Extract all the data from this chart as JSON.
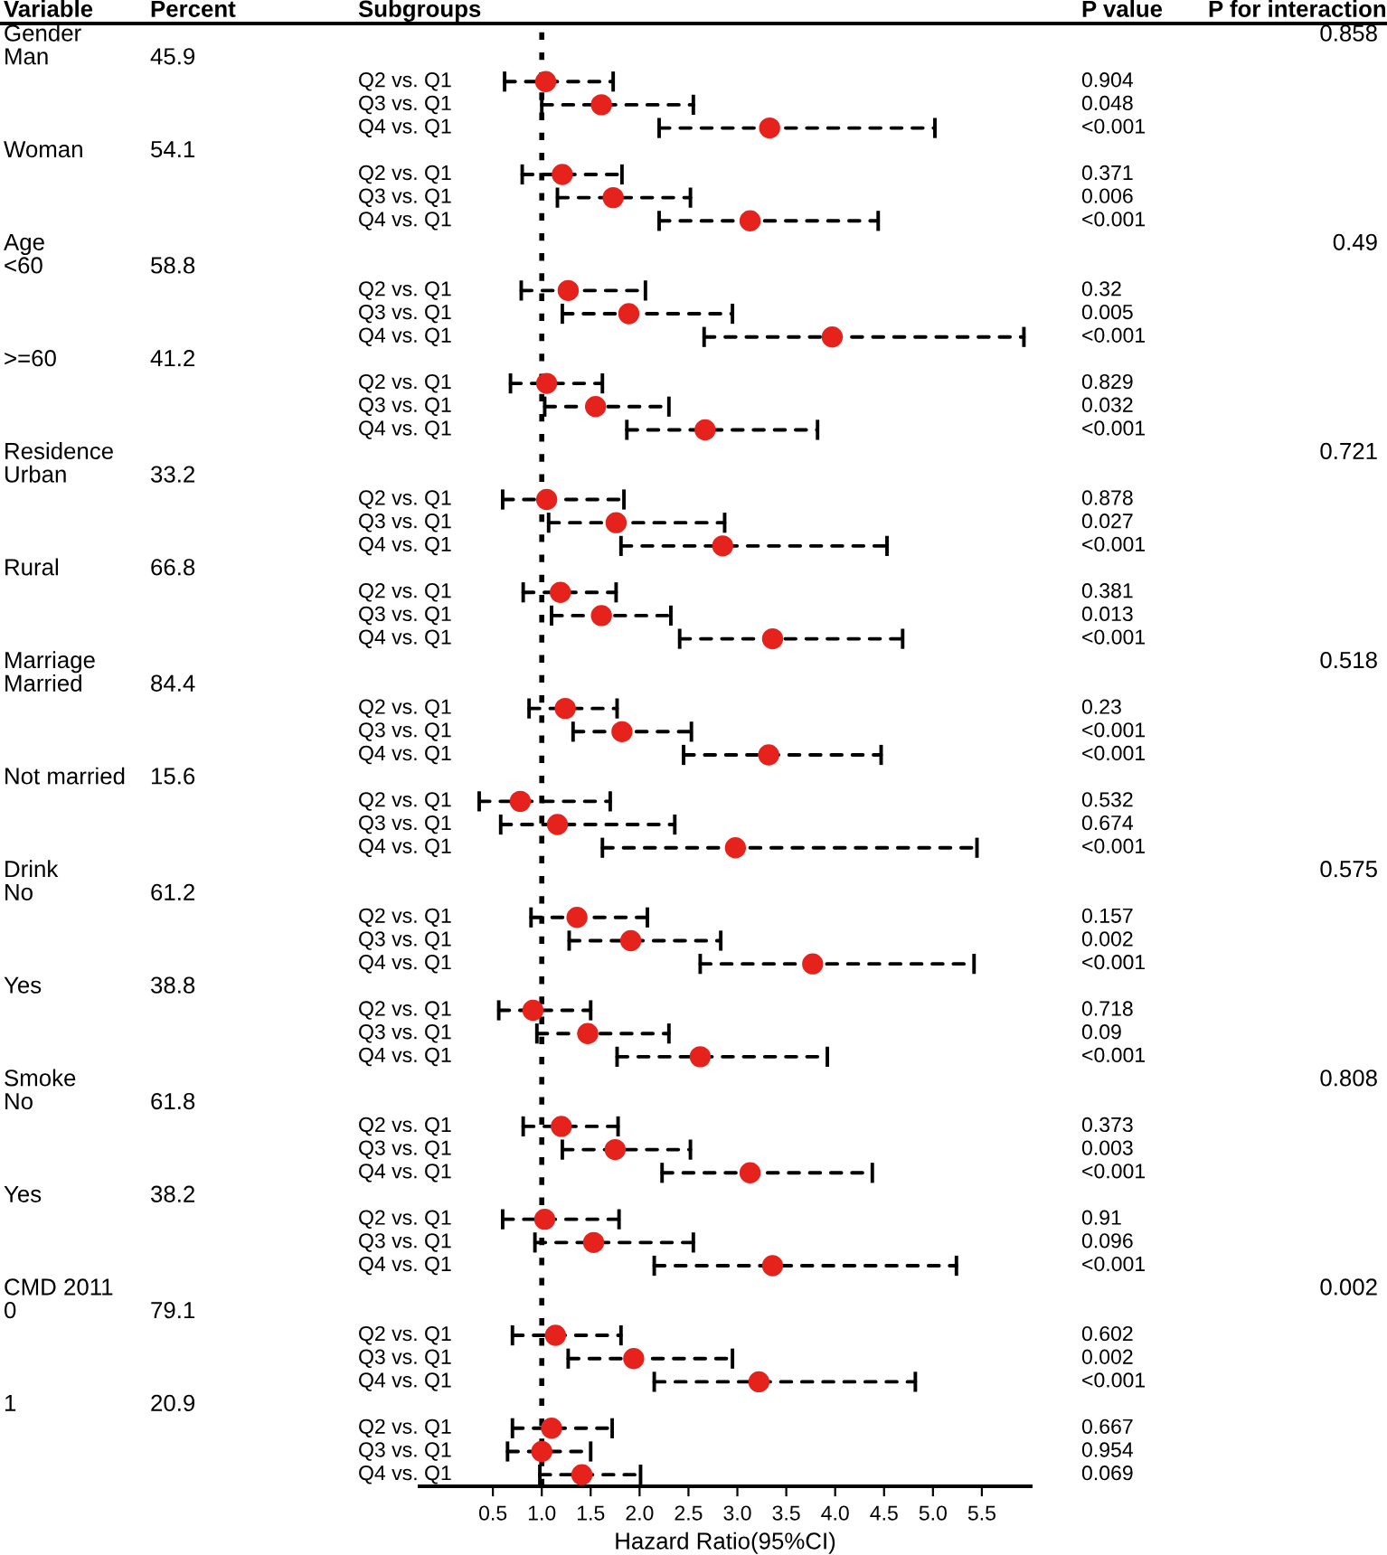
{
  "chart_data": {
    "type": "scatter",
    "orientation": "horizontal",
    "xlabel": "Hazard Ratio(95%CI)",
    "categories": [
      null,
      null,
      "Q2 vs. Q1",
      "Q3 vs. Q1",
      "Q4 vs. Q1",
      null,
      "Q2 vs. Q1",
      "Q3 vs. Q1",
      "Q4 vs. Q1",
      null,
      null,
      "Q2 vs. Q1",
      "Q3 vs. Q1",
      "Q4 vs. Q1",
      null,
      "Q2 vs. Q1",
      "Q3 vs. Q1",
      "Q4 vs. Q1",
      null,
      null,
      "Q2 vs. Q1",
      "Q3 vs. Q1",
      "Q4 vs. Q1",
      null,
      "Q2 vs. Q1",
      "Q3 vs. Q1",
      "Q4 vs. Q1",
      null,
      null,
      "Q2 vs. Q1",
      "Q3 vs. Q1",
      "Q4 vs. Q1",
      null,
      "Q2 vs. Q1",
      "Q3 vs. Q1",
      "Q4 vs. Q1",
      null,
      null,
      "Q2 vs. Q1",
      "Q3 vs. Q1",
      "Q4 vs. Q1",
      null,
      "Q2 vs. Q1",
      "Q3 vs. Q1",
      "Q4 vs. Q1",
      null,
      null,
      "Q2 vs. Q1",
      "Q3 vs. Q1",
      "Q4 vs. Q1",
      null,
      "Q2 vs. Q1",
      "Q3 vs. Q1",
      "Q4 vs. Q1",
      null,
      null,
      "Q2 vs. Q1",
      "Q3 vs. Q1",
      "Q4 vs. Q1",
      null,
      "Q2 vs. Q1",
      "Q3 vs. Q1",
      "Q4 vs. Q1"
    ],
    "values": [
      null,
      null,
      1.04,
      1.61,
      3.33,
      null,
      1.21,
      1.73,
      3.13,
      null,
      null,
      1.27,
      1.89,
      3.97,
      null,
      1.05,
      1.55,
      2.67,
      null,
      null,
      1.05,
      1.76,
      2.85,
      null,
      1.19,
      1.61,
      3.36,
      null,
      null,
      1.24,
      1.82,
      3.32,
      null,
      0.78,
      1.16,
      2.98,
      null,
      null,
      1.36,
      1.91,
      3.77,
      null,
      0.91,
      1.47,
      2.62,
      null,
      null,
      1.2,
      1.75,
      3.13,
      null,
      1.03,
      1.53,
      3.36,
      null,
      null,
      1.14,
      1.94,
      3.22,
      null,
      1.1,
      1.0,
      1.41
    ],
    "errors": [
      null,
      null,
      [
        0.62,
        1.73
      ],
      [
        1.0,
        2.55
      ],
      [
        2.2,
        5.02
      ],
      null,
      [
        0.8,
        1.82
      ],
      [
        1.16,
        2.52
      ],
      [
        2.2,
        4.44
      ],
      null,
      null,
      [
        0.79,
        2.06
      ],
      [
        1.21,
        2.95
      ],
      [
        2.66,
        5.93
      ],
      null,
      [
        0.68,
        1.62
      ],
      [
        1.03,
        2.3
      ],
      [
        1.87,
        3.82
      ],
      null,
      null,
      [
        0.6,
        1.84
      ],
      [
        1.07,
        2.87
      ],
      [
        1.81,
        4.53
      ],
      null,
      [
        0.81,
        1.76
      ],
      [
        1.1,
        2.32
      ],
      [
        2.41,
        4.69
      ],
      null,
      null,
      [
        0.87,
        1.77
      ],
      [
        1.32,
        2.53
      ],
      [
        2.45,
        4.47
      ],
      null,
      [
        0.36,
        1.7
      ],
      [
        0.58,
        2.36
      ],
      [
        1.62,
        5.45
      ],
      null,
      null,
      [
        0.89,
        2.08
      ],
      [
        1.28,
        2.83
      ],
      [
        2.62,
        5.42
      ],
      null,
      [
        0.56,
        1.5
      ],
      [
        0.95,
        2.3
      ],
      [
        1.77,
        3.92
      ],
      null,
      null,
      [
        0.81,
        1.78
      ],
      [
        1.21,
        2.52
      ],
      [
        2.23,
        4.38
      ],
      null,
      [
        0.6,
        1.79
      ],
      [
        0.93,
        2.55
      ],
      [
        2.15,
        5.24
      ],
      null,
      null,
      [
        0.7,
        1.81
      ],
      [
        1.27,
        2.95
      ],
      [
        2.15,
        4.82
      ],
      null,
      [
        0.7,
        1.72
      ],
      [
        0.65,
        1.5
      ],
      [
        0.98,
        2.01
      ]
    ],
    "annotations": [
      "Variable",
      "Percent",
      "Subgroups",
      "P value",
      "P for interaction",
      "Gender",
      "0.858",
      "Man",
      "45.9",
      "0.904",
      "0.048",
      "<0.001",
      "Woman",
      "54.1",
      "0.371",
      "0.006",
      "<0.001",
      "Age",
      "0.49",
      "<60",
      "58.8",
      "0.32",
      "0.005",
      "<0.001",
      ">=60",
      "41.2",
      "0.829",
      "0.032",
      "<0.001",
      "Residence",
      "0.721",
      "Urban",
      "33.2",
      "0.878",
      "0.027",
      "<0.001",
      "Rural",
      "66.8",
      "0.381",
      "0.013",
      "<0.001",
      "Marriage",
      "0.518",
      "Married",
      "84.4",
      "0.23",
      "<0.001",
      "<0.001",
      "Not married",
      "15.6",
      "0.532",
      "0.674",
      "<0.001",
      "Drink",
      "0.575",
      "No",
      "61.2",
      "0.157",
      "0.002",
      "<0.001",
      "Yes",
      "38.8",
      "0.718",
      "0.09",
      "<0.001",
      "Smoke",
      "0.808",
      "No",
      "61.8",
      "0.373",
      "0.003",
      "<0.001",
      "Yes",
      "38.2",
      "0.91",
      "0.096",
      "<0.001",
      "CMD 2011",
      "0.002",
      "0",
      "79.1",
      "0.602",
      "0.002",
      "<0.001",
      "1",
      "20.9",
      "0.667",
      "0.954",
      "0.069"
    ],
    "color": "#e5221c",
    "marker": "circle",
    "line_style": "dashed",
    "xlim": [
      -0.25,
      6.0
    ],
    "xticks": [
      {
        "value": 0.5,
        "label": "0.5"
      },
      {
        "value": 1.0,
        "label": "1.0"
      },
      {
        "value": 1.5,
        "label": "1.5"
      },
      {
        "value": 2.0,
        "label": "2.0"
      },
      {
        "value": 2.5,
        "label": "2.5"
      },
      {
        "value": 3.0,
        "label": "3.0"
      },
      {
        "value": 3.5,
        "label": "3.5"
      },
      {
        "value": 4.0,
        "label": "4.0"
      },
      {
        "value": 4.5,
        "label": "4.5"
      },
      {
        "value": 5.0,
        "label": "5.0"
      },
      {
        "value": 5.5,
        "label": "5.5"
      }
    ],
    "ref_lines": [
      {
        "axis": "x",
        "value": 1.0,
        "color": "#000000",
        "line_style": "dotted"
      }
    ],
    "tick_labels": "x",
    "grid": false
  }
}
